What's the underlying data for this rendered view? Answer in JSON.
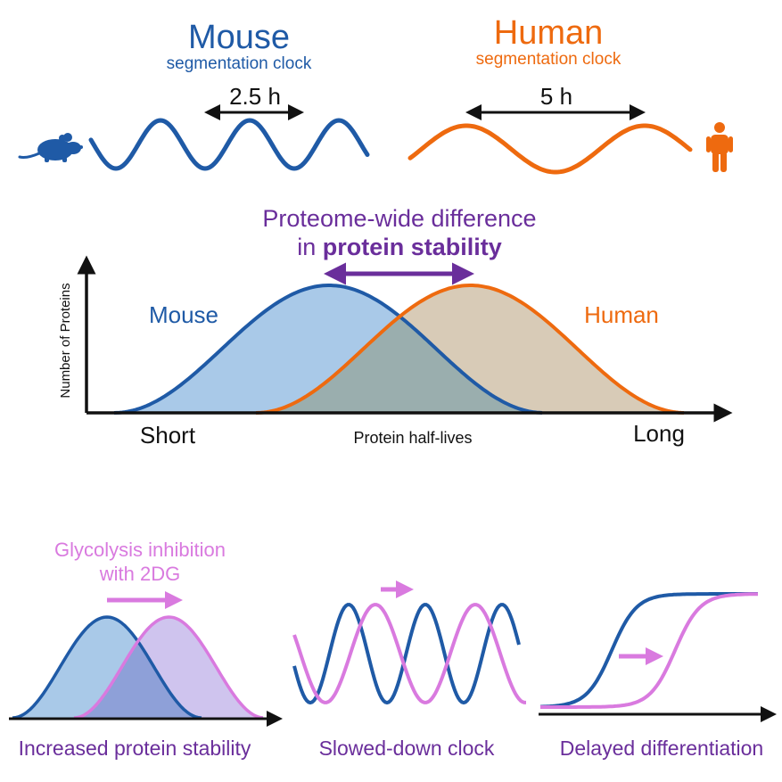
{
  "colors": {
    "mouse": "#1f5aa6",
    "human": "#ee6a0f",
    "purple": "#6a2e9b",
    "pink": "#d97adf",
    "black": "#111111",
    "mouse_fill": "#a9c9e8",
    "human_fill": "#d8cbb7",
    "overlap_fill": "#9aaeae",
    "pink_fill": "#cfc4ee",
    "small_overlap_fill": "#8ea0d8"
  },
  "top": {
    "mouse": {
      "title": "Mouse",
      "subtitle": "segmentation clock",
      "period": "2.5 h",
      "icon": "mouse-icon"
    },
    "human": {
      "title": "Human",
      "subtitle": "segmentation clock",
      "period": "5 h",
      "icon": "person-icon"
    }
  },
  "middle": {
    "heading_line1": "Proteome-wide difference",
    "heading_line2_prefix": "in ",
    "heading_line2_bold": "protein stability",
    "y_axis_label": "Number of Proteins",
    "x_axis_label": "Protein half-lives",
    "x_left": "Short",
    "x_right": "Long",
    "curve_mouse_label": "Mouse",
    "curve_human_label": "Human"
  },
  "bottom": {
    "inhibition_line1": "Glycolysis inhibition",
    "inhibition_line2": "with 2DG",
    "panel1_caption": "Increased protein stability",
    "panel2_caption": "Slowed-down clock",
    "panel3_caption": "Delayed differentiation"
  }
}
